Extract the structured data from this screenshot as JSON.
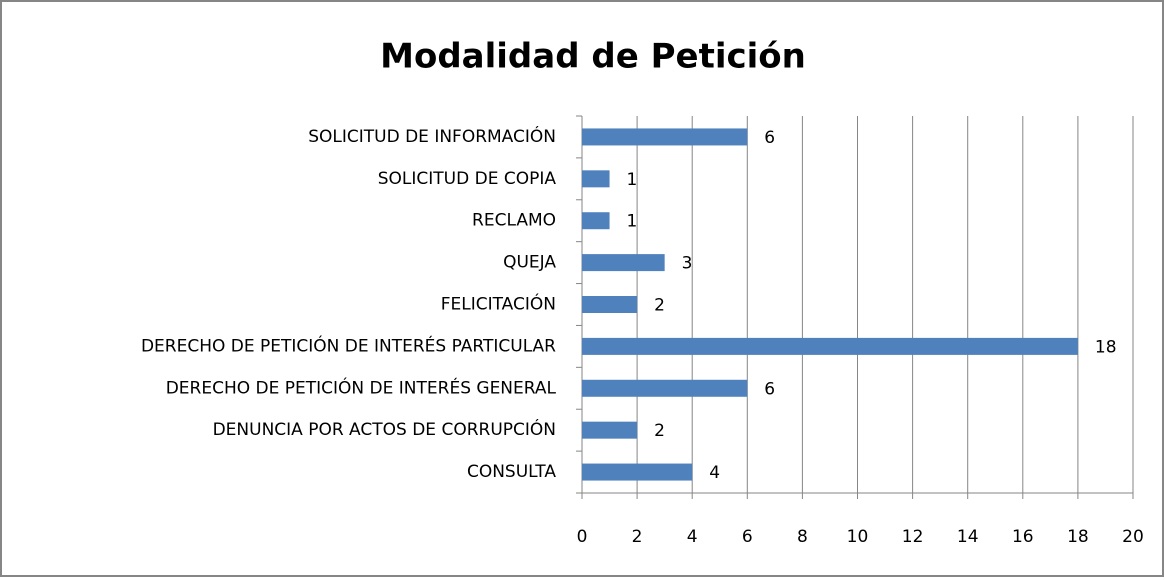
{
  "chart_data": {
    "type": "bar",
    "orientation": "horizontal",
    "title": "Modalidad de Petición",
    "categories": [
      "SOLICITUD DE INFORMACIÓN",
      "SOLICITUD DE COPIA",
      "RECLAMO",
      "QUEJA",
      "FELICITACIÓN",
      "DERECHO DE PETICIÓN DE INTERÉS PARTICULAR",
      "DERECHO DE PETICIÓN DE INTERÉS GENERAL",
      "DENUNCIA POR ACTOS DE CORRUPCIÓN",
      "CONSULTA"
    ],
    "values": [
      6,
      1,
      1,
      3,
      2,
      18,
      6,
      2,
      4
    ],
    "color": "#4f81bd",
    "xlim": [
      0,
      20
    ],
    "xticks": [
      0,
      2,
      4,
      6,
      8,
      10,
      12,
      14,
      16,
      18,
      20
    ],
    "grid": true
  }
}
